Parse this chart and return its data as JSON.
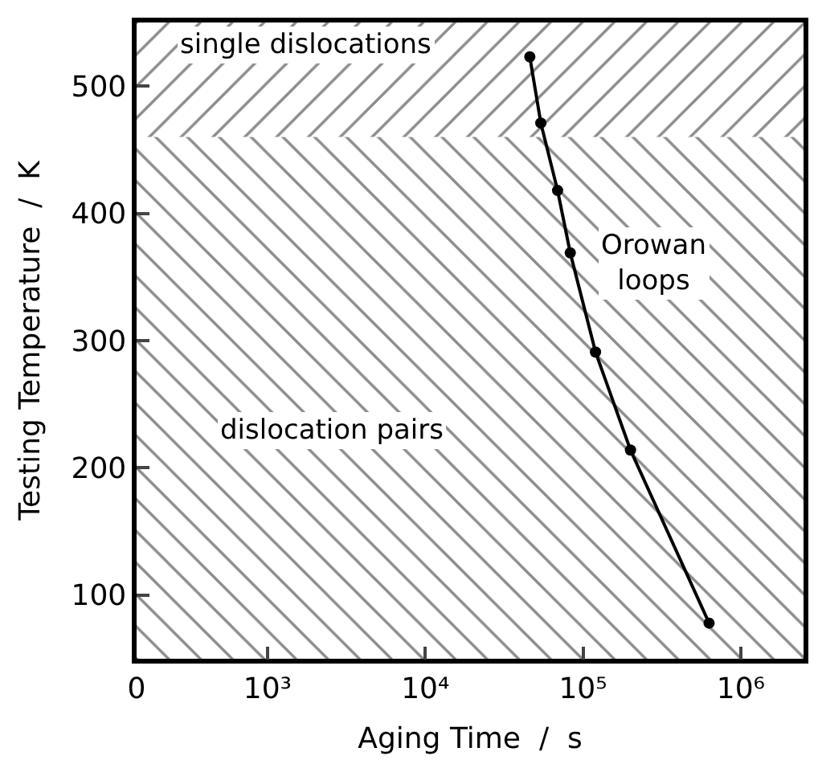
{
  "chart_data": {
    "type": "line",
    "xlabel": "Aging Time  /  s",
    "ylabel": "Testing Temperature  /  K",
    "x": [
      46000,
      54000,
      69000,
      83000,
      120000,
      200000,
      630000
    ],
    "series": [
      {
        "color": "#000000",
        "values": [
          523,
          471,
          418,
          369,
          291,
          214,
          78
        ]
      }
    ],
    "log": "x",
    "marker": "circle",
    "line_style": "solid",
    "xlim": [
      0,
      2500000
    ],
    "xticks": [
      0,
      {
        "value": 1000,
        "label": "10³"
      },
      {
        "value": 10000,
        "label": "10⁴"
      },
      {
        "value": 100000,
        "label": "10⁵"
      },
      {
        "value": 1000000,
        "label": "10⁶"
      }
    ],
    "ylim": [
      50,
      550
    ],
    "yticks": [
      100,
      200,
      300,
      400,
      500
    ],
    "bands": [
      {
        "axis": "y",
        "from": 430,
        "to": 550,
        "label": "single dislocations",
        "color": "#000000"
      },
      {
        "axis": "y",
        "from": 50,
        "to": 460,
        "label": "dislocation pairs",
        "color": "#000000"
      }
    ],
    "annotations": [
      "Orowan\nloops"
    ]
  }
}
